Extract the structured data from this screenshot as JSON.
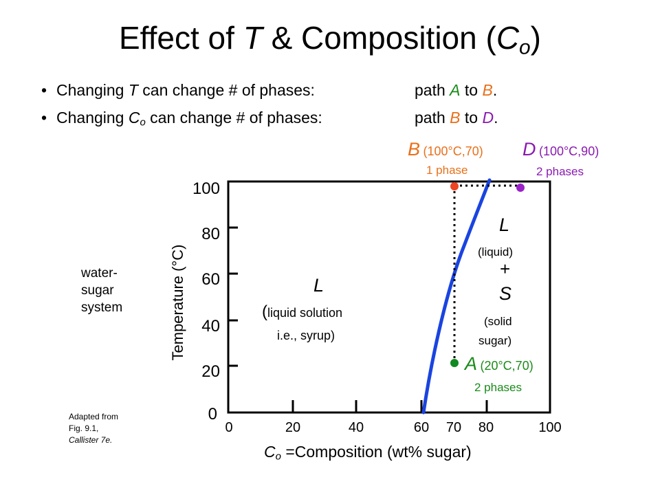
{
  "title": {
    "prefix": "Effect of ",
    "t": "T",
    "mid": " & Composition (",
    "c": "C",
    "sub": "o",
    "close": ")"
  },
  "bullets": [
    {
      "a": "Changing ",
      "v": "T",
      "b": " can change # of phases:",
      "p1": "path ",
      "from": "A",
      "to_word": " to ",
      "to": "B",
      "end": "."
    },
    {
      "a": "Changing ",
      "v": "C",
      "vsub": "o",
      "b": " can change # of phases:",
      "p1": "path ",
      "from": "B",
      "to_word": " to ",
      "to": "D",
      "end": "."
    }
  ],
  "points": {
    "B": {
      "letter": "B",
      "coords": "(100°C,70)",
      "note": "1 phase",
      "color": "#ee4422",
      "composition": 70,
      "temperature": 100
    },
    "D": {
      "letter": "D",
      "coords": "(100°C,90)",
      "note": "2 phases",
      "color": "#9a22c8",
      "composition": 90,
      "temperature": 100
    },
    "A": {
      "letter": "A",
      "coords": "(20°C,70)",
      "note": "2 phases",
      "color": "#118a22",
      "composition": 70,
      "temperature": 20
    }
  },
  "regions": {
    "liquid": {
      "symbol": "L",
      "paren": "(",
      "l1": "liquid solution",
      "l2": "i.e., syrup)"
    },
    "two_phase": {
      "L": "L",
      "liquid": "(liquid)",
      "plus": "+",
      "S": "S",
      "solid1": "(solid",
      "solid2": "sugar)"
    }
  },
  "axes": {
    "ylabel": "Temperature (°C)",
    "yticks": [
      "0",
      "20",
      "40",
      "60",
      "80",
      "100"
    ],
    "xticks": [
      "0",
      "20",
      "40",
      "60",
      "70",
      "80",
      "100"
    ],
    "xlabel": {
      "c": "C",
      "sub": "o",
      "rest": " =Composition (wt% sugar)"
    }
  },
  "system_label": [
    "water-",
    "sugar",
    "system"
  ],
  "source": {
    "l1": "Adapted from",
    "l2": "Fig. 9.1,",
    "l3": "Callister 7e."
  },
  "colors": {
    "curve": "#1a44e0",
    "dotted": "#000000",
    "green": "#1a8a1a",
    "orange": "#e8701a",
    "purple": "#8a1ab0"
  }
}
